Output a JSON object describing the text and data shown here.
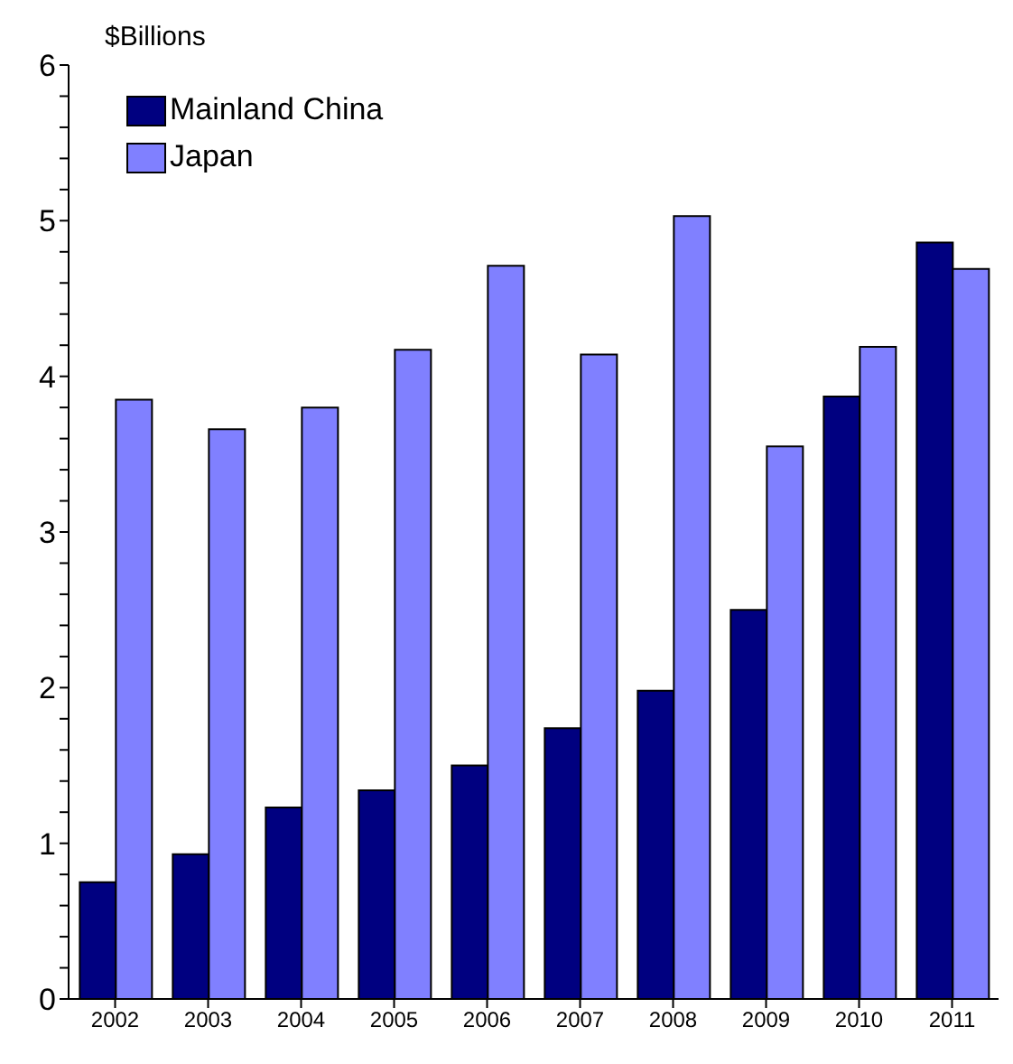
{
  "chart_data": {
    "type": "bar",
    "ylabel": "$Billions",
    "categories": [
      "2002",
      "2003",
      "2004",
      "2005",
      "2006",
      "2007",
      "2008",
      "2009",
      "2010",
      "2011"
    ],
    "series": [
      {
        "name": "Mainland China",
        "color": "#000080",
        "values": [
          0.75,
          0.93,
          1.23,
          1.34,
          1.5,
          1.74,
          1.98,
          2.5,
          3.87,
          4.86
        ]
      },
      {
        "name": "Japan",
        "color": "#8080ff",
        "values": [
          3.85,
          3.66,
          3.8,
          4.17,
          4.71,
          4.14,
          5.03,
          3.55,
          4.19,
          4.69
        ]
      }
    ],
    "ylim": [
      0,
      6
    ],
    "yticks": [
      0,
      {
        "value": 0.2,
        "label": null
      },
      {
        "value": 0.4,
        "label": null
      },
      {
        "value": 0.6,
        "label": null
      },
      {
        "value": 0.8,
        "label": null
      },
      1,
      {
        "value": 1.2,
        "label": null
      },
      {
        "value": 1.4,
        "label": null
      },
      {
        "value": 1.6,
        "label": null
      },
      {
        "value": 1.8,
        "label": null
      },
      2,
      {
        "value": 2.2,
        "label": null
      },
      {
        "value": 2.4,
        "label": null
      },
      {
        "value": 2.6,
        "label": null
      },
      {
        "value": 2.8,
        "label": null
      },
      3,
      {
        "value": 3.2,
        "label": null
      },
      {
        "value": 3.4,
        "label": null
      },
      {
        "value": 3.6,
        "label": null
      },
      {
        "value": 3.8,
        "label": null
      },
      4,
      {
        "value": 4.2,
        "label": null
      },
      {
        "value": 4.4,
        "label": null
      },
      {
        "value": 4.6,
        "label": null
      },
      {
        "value": 4.8,
        "label": null
      },
      5,
      {
        "value": 5.2,
        "label": null
      },
      {
        "value": 5.4,
        "label": null
      },
      {
        "value": 5.6,
        "label": null
      },
      {
        "value": 5.8,
        "label": null
      },
      6
    ],
    "grid": false,
    "legend": "top left"
  }
}
